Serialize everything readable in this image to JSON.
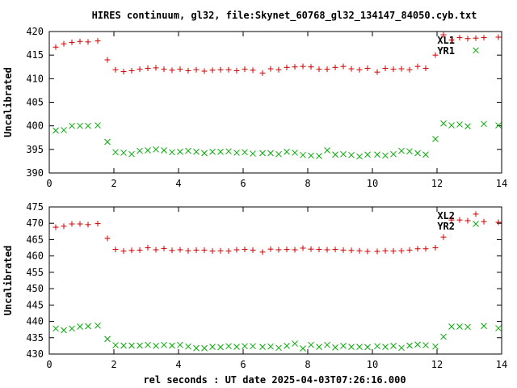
{
  "title": "HIRES continuum, gl32, file:Skynet_60768_gl32_134147_84050.cyb.txt",
  "xlabel": "rel seconds : UT date 2025-04-03T07:26:16.000",
  "chart_data": [
    {
      "type": "scatter",
      "ylabel": "Uncalibrated",
      "xlim": [
        0,
        14
      ],
      "ylim": [
        390,
        420
      ],
      "xticks": [
        "0",
        "2",
        "4",
        "6",
        "8",
        "10",
        "12",
        "14"
      ],
      "yticks": [
        "390",
        "395",
        "400",
        "405",
        "410",
        "415",
        "420"
      ],
      "legend_position": "top-right",
      "series": [
        {
          "name": "XL1",
          "color": "#cc0000",
          "marker": "plus",
          "points": [
            [
              0.2,
              416.7
            ],
            [
              0.45,
              417.4
            ],
            [
              0.7,
              417.7
            ],
            [
              0.95,
              417.9
            ],
            [
              1.2,
              417.8
            ],
            [
              1.5,
              418.0
            ],
            [
              1.8,
              414.0
            ],
            [
              2.05,
              411.9
            ],
            [
              2.3,
              411.5
            ],
            [
              2.55,
              411.7
            ],
            [
              2.8,
              412.0
            ],
            [
              3.05,
              412.2
            ],
            [
              3.3,
              412.3
            ],
            [
              3.55,
              412.0
            ],
            [
              3.8,
              411.8
            ],
            [
              4.05,
              412.0
            ],
            [
              4.3,
              411.7
            ],
            [
              4.55,
              411.9
            ],
            [
              4.8,
              411.6
            ],
            [
              5.05,
              411.8
            ],
            [
              5.3,
              411.9
            ],
            [
              5.55,
              411.9
            ],
            [
              5.8,
              411.7
            ],
            [
              6.05,
              412.0
            ],
            [
              6.3,
              411.8
            ],
            [
              6.6,
              411.2
            ],
            [
              6.85,
              412.1
            ],
            [
              7.1,
              411.9
            ],
            [
              7.35,
              412.4
            ],
            [
              7.6,
              412.5
            ],
            [
              7.85,
              412.6
            ],
            [
              8.1,
              412.5
            ],
            [
              8.35,
              412.0
            ],
            [
              8.6,
              412.0
            ],
            [
              8.85,
              412.4
            ],
            [
              9.1,
              412.6
            ],
            [
              9.35,
              412.1
            ],
            [
              9.6,
              411.9
            ],
            [
              9.85,
              412.2
            ],
            [
              10.15,
              411.4
            ],
            [
              10.4,
              412.2
            ],
            [
              10.65,
              412.0
            ],
            [
              10.9,
              412.1
            ],
            [
              11.15,
              411.9
            ],
            [
              11.4,
              412.6
            ],
            [
              11.65,
              412.2
            ],
            [
              11.95,
              415.0
            ],
            [
              12.2,
              419.3
            ],
            [
              12.45,
              418.2
            ],
            [
              12.7,
              418.7
            ],
            [
              12.95,
              418.5
            ],
            [
              13.2,
              418.6
            ],
            [
              13.45,
              418.7
            ],
            [
              13.9,
              418.8
            ]
          ]
        },
        {
          "name": "YR1",
          "color": "#00aa00",
          "marker": "cross",
          "points": [
            [
              0.2,
              399.0
            ],
            [
              0.45,
              399.1
            ],
            [
              0.7,
              400.0
            ],
            [
              0.95,
              400.0
            ],
            [
              1.2,
              400.0
            ],
            [
              1.5,
              400.1
            ],
            [
              1.8,
              396.6
            ],
            [
              2.05,
              394.4
            ],
            [
              2.3,
              394.3
            ],
            [
              2.55,
              394.0
            ],
            [
              2.8,
              394.7
            ],
            [
              3.05,
              394.8
            ],
            [
              3.3,
              395.0
            ],
            [
              3.55,
              394.8
            ],
            [
              3.8,
              394.4
            ],
            [
              4.05,
              394.5
            ],
            [
              4.3,
              394.7
            ],
            [
              4.55,
              394.5
            ],
            [
              4.8,
              394.2
            ],
            [
              5.05,
              394.5
            ],
            [
              5.3,
              394.5
            ],
            [
              5.55,
              394.6
            ],
            [
              5.8,
              394.3
            ],
            [
              6.05,
              394.4
            ],
            [
              6.3,
              394.1
            ],
            [
              6.6,
              394.2
            ],
            [
              6.85,
              394.2
            ],
            [
              7.1,
              394.0
            ],
            [
              7.35,
              394.5
            ],
            [
              7.6,
              394.3
            ],
            [
              7.85,
              393.8
            ],
            [
              8.1,
              393.7
            ],
            [
              8.35,
              393.6
            ],
            [
              8.6,
              394.8
            ],
            [
              8.85,
              393.9
            ],
            [
              9.1,
              394.0
            ],
            [
              9.35,
              393.8
            ],
            [
              9.6,
              393.5
            ],
            [
              9.85,
              393.9
            ],
            [
              10.15,
              393.9
            ],
            [
              10.4,
              393.7
            ],
            [
              10.65,
              394.0
            ],
            [
              10.9,
              394.7
            ],
            [
              11.15,
              394.6
            ],
            [
              11.4,
              394.2
            ],
            [
              11.65,
              393.9
            ],
            [
              11.95,
              397.2
            ],
            [
              12.2,
              400.5
            ],
            [
              12.45,
              400.1
            ],
            [
              12.7,
              400.3
            ],
            [
              12.95,
              399.9
            ],
            [
              13.2,
              416.0
            ],
            [
              13.45,
              400.4
            ],
            [
              13.9,
              400.1
            ]
          ]
        }
      ]
    },
    {
      "type": "scatter",
      "ylabel": "Uncalibrated",
      "xlim": [
        0,
        14
      ],
      "ylim": [
        430,
        475
      ],
      "xticks": [
        "0",
        "2",
        "4",
        "6",
        "8",
        "10",
        "12",
        "14"
      ],
      "yticks": [
        "430",
        "435",
        "440",
        "445",
        "450",
        "455",
        "460",
        "465",
        "470",
        "475"
      ],
      "legend_position": "top-right",
      "series": [
        {
          "name": "XL2",
          "color": "#cc0000",
          "marker": "plus",
          "points": [
            [
              0.2,
              468.8
            ],
            [
              0.45,
              469.1
            ],
            [
              0.7,
              469.8
            ],
            [
              0.95,
              469.8
            ],
            [
              1.2,
              469.6
            ],
            [
              1.5,
              469.9
            ],
            [
              1.8,
              465.4
            ],
            [
              2.05,
              462.0
            ],
            [
              2.3,
              461.5
            ],
            [
              2.55,
              461.7
            ],
            [
              2.8,
              461.8
            ],
            [
              3.05,
              462.5
            ],
            [
              3.3,
              461.9
            ],
            [
              3.55,
              462.3
            ],
            [
              3.8,
              461.7
            ],
            [
              4.05,
              461.9
            ],
            [
              4.3,
              461.6
            ],
            [
              4.55,
              461.8
            ],
            [
              4.8,
              461.8
            ],
            [
              5.05,
              461.5
            ],
            [
              5.3,
              461.6
            ],
            [
              5.55,
              461.5
            ],
            [
              5.8,
              461.9
            ],
            [
              6.05,
              462.0
            ],
            [
              6.3,
              461.8
            ],
            [
              6.6,
              461.2
            ],
            [
              6.85,
              462.1
            ],
            [
              7.1,
              461.9
            ],
            [
              7.35,
              462.0
            ],
            [
              7.6,
              461.9
            ],
            [
              7.85,
              462.4
            ],
            [
              8.1,
              462.1
            ],
            [
              8.35,
              462.0
            ],
            [
              8.6,
              461.9
            ],
            [
              8.85,
              462.0
            ],
            [
              9.1,
              461.8
            ],
            [
              9.35,
              461.7
            ],
            [
              9.6,
              461.6
            ],
            [
              9.85,
              461.4
            ],
            [
              10.15,
              461.4
            ],
            [
              10.4,
              461.6
            ],
            [
              10.65,
              461.5
            ],
            [
              10.9,
              461.6
            ],
            [
              11.15,
              461.8
            ],
            [
              11.4,
              462.2
            ],
            [
              11.65,
              462.2
            ],
            [
              11.95,
              462.5
            ],
            [
              12.2,
              465.8
            ],
            [
              12.45,
              471.0
            ],
            [
              12.7,
              471.0
            ],
            [
              12.95,
              470.8
            ],
            [
              13.2,
              472.8
            ],
            [
              13.45,
              470.5
            ],
            [
              13.9,
              470.3
            ]
          ]
        },
        {
          "name": "YR2",
          "color": "#00aa00",
          "marker": "cross",
          "points": [
            [
              0.2,
              437.8
            ],
            [
              0.45,
              437.3
            ],
            [
              0.7,
              437.8
            ],
            [
              0.95,
              438.4
            ],
            [
              1.2,
              438.5
            ],
            [
              1.5,
              438.7
            ],
            [
              1.8,
              434.6
            ],
            [
              2.05,
              432.7
            ],
            [
              2.3,
              432.6
            ],
            [
              2.55,
              432.6
            ],
            [
              2.8,
              432.6
            ],
            [
              3.05,
              432.8
            ],
            [
              3.3,
              432.5
            ],
            [
              3.55,
              432.8
            ],
            [
              3.8,
              432.6
            ],
            [
              4.05,
              432.8
            ],
            [
              4.3,
              432.3
            ],
            [
              4.55,
              431.8
            ],
            [
              4.8,
              431.8
            ],
            [
              5.05,
              432.2
            ],
            [
              5.3,
              432.1
            ],
            [
              5.55,
              432.4
            ],
            [
              5.8,
              432.2
            ],
            [
              6.05,
              432.4
            ],
            [
              6.3,
              432.4
            ],
            [
              6.6,
              432.2
            ],
            [
              6.85,
              432.3
            ],
            [
              7.1,
              431.9
            ],
            [
              7.35,
              432.5
            ],
            [
              7.6,
              433.2
            ],
            [
              7.85,
              431.7
            ],
            [
              8.1,
              432.8
            ],
            [
              8.35,
              432.2
            ],
            [
              8.6,
              432.8
            ],
            [
              8.85,
              432.0
            ],
            [
              9.1,
              432.5
            ],
            [
              9.35,
              432.2
            ],
            [
              9.6,
              432.2
            ],
            [
              9.85,
              432.1
            ],
            [
              10.15,
              432.4
            ],
            [
              10.4,
              432.2
            ],
            [
              10.65,
              432.5
            ],
            [
              10.9,
              431.9
            ],
            [
              11.15,
              432.6
            ],
            [
              11.4,
              432.9
            ],
            [
              11.65,
              432.7
            ],
            [
              11.95,
              432.3
            ],
            [
              12.2,
              435.3
            ],
            [
              12.45,
              438.4
            ],
            [
              12.7,
              438.4
            ],
            [
              12.95,
              438.3
            ],
            [
              13.2,
              469.8
            ],
            [
              13.45,
              438.6
            ],
            [
              13.9,
              437.9
            ]
          ]
        }
      ]
    }
  ]
}
